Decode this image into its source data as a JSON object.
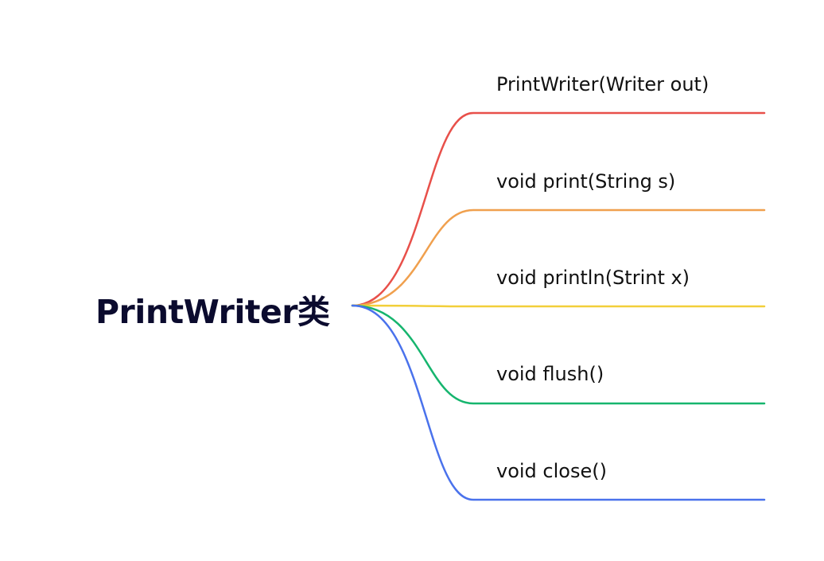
{
  "root": {
    "title": "PrintWriter类"
  },
  "branches": [
    {
      "label": "PrintWriter(Writer out)",
      "color": "#e8504a"
    },
    {
      "label": "void print(String s)",
      "color": "#f0a04e"
    },
    {
      "label": "void println(Strint x)",
      "color": "#f2cf3a"
    },
    {
      "label": "void flush()",
      "color": "#16b56e"
    },
    {
      "label": "void close()",
      "color": "#4a72ec"
    }
  ]
}
